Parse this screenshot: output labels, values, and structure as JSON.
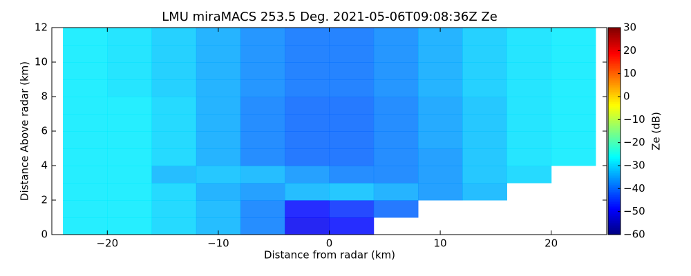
{
  "chart_data": {
    "type": "rhi",
    "title": "LMU miraMACS 253.5 Deg. 2021-05-06T09:08:36Z  Ze",
    "xlabel": "Distance from radar (km)",
    "ylabel": "Distance Above radar  (km)",
    "xlim": [
      -25,
      25
    ],
    "ylim": [
      0,
      12
    ],
    "xticks": [
      {
        "value": -20,
        "label": "−20"
      },
      {
        "value": -10,
        "label": "−10"
      },
      0,
      10,
      20
    ],
    "yticks": [
      0,
      2,
      4,
      6,
      8,
      10,
      12
    ],
    "colormap": "jet",
    "colorbar": {
      "label": "Ze (dB)",
      "clim": [
        -60,
        30
      ],
      "ticks": [
        {
          "value": -60,
          "label": "−60"
        },
        {
          "value": -50,
          "label": "−50"
        },
        {
          "value": -40,
          "label": "−40"
        },
        {
          "value": -30,
          "label": "−30"
        },
        {
          "value": -20,
          "label": "−20"
        },
        {
          "value": -10,
          "label": "−10"
        },
        0,
        10,
        20,
        30
      ]
    },
    "x": [
      -22,
      -18,
      -14,
      -10,
      -6,
      -2,
      2,
      6,
      10,
      14,
      18,
      22
    ],
    "y": [
      0.5,
      1.5,
      2.5,
      3.5,
      4.5,
      5.5,
      6.5,
      7.5,
      8.5,
      9.5,
      10.5,
      11.5
    ],
    "values": [
      [
        -28,
        -28,
        -30,
        -33,
        -38,
        -50,
        -48,
        null,
        null,
        null,
        null,
        null
      ],
      [
        -28,
        -28,
        -30,
        -33,
        -38,
        -48,
        -45,
        -40,
        null,
        null,
        null,
        null
      ],
      [
        -28,
        -28,
        -30,
        -34,
        -36,
        -33,
        -32,
        -34,
        -36,
        -33,
        null,
        null
      ],
      [
        -28,
        -28,
        -33,
        -32,
        -33,
        -36,
        -38,
        -38,
        -36,
        -32,
        -30,
        null
      ],
      [
        -28,
        -28,
        -30,
        -34,
        -38,
        -40,
        -40,
        -38,
        -36,
        -32,
        -29,
        -28
      ],
      [
        -28,
        -28,
        -30,
        -34,
        -38,
        -40,
        -40,
        -38,
        -35,
        -32,
        -29,
        -28
      ],
      [
        -28,
        -28,
        -30,
        -34,
        -38,
        -40,
        -40,
        -38,
        -35,
        -32,
        -29,
        -28
      ],
      [
        -28,
        -28,
        -30,
        -34,
        -38,
        -40,
        -40,
        -38,
        -35,
        -32,
        -29,
        -28
      ],
      [
        -28,
        -29,
        -31,
        -34,
        -37,
        -39,
        -39,
        -37,
        -34,
        -31,
        -29,
        -28
      ],
      [
        -28,
        -29,
        -31,
        -34,
        -37,
        -39,
        -39,
        -37,
        -34,
        -31,
        -29,
        -28
      ],
      [
        -28,
        -29,
        -31,
        -34,
        -37,
        -39,
        -39,
        -37,
        -34,
        -31,
        -29,
        -28
      ],
      [
        -28,
        -29,
        -31,
        -34,
        -37,
        -39,
        -39,
        -37,
        -34,
        -31,
        -29,
        -28
      ]
    ]
  }
}
